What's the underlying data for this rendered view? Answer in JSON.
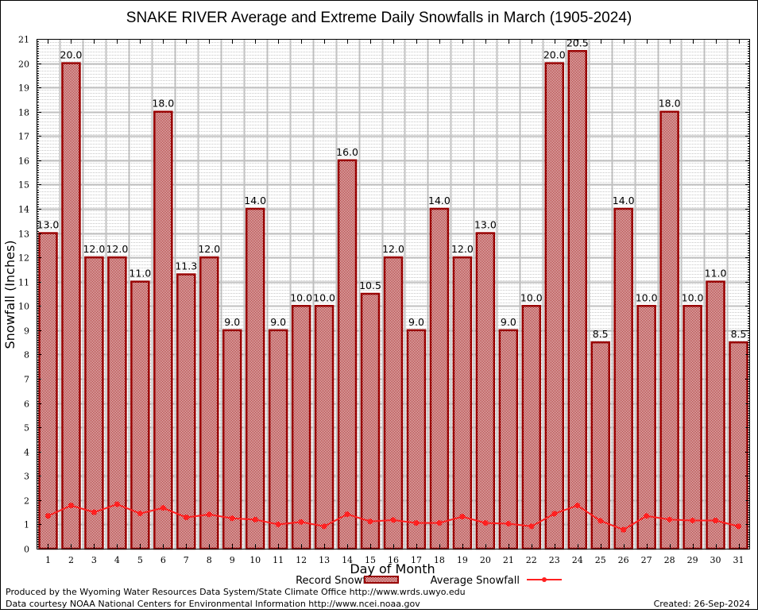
{
  "chart_data": {
    "type": "bar",
    "title": "SNAKE RIVER Average and Extreme Daily Snowfalls in March (1905-2024)",
    "xlabel": "Day of Month",
    "ylabel": "Snowfall (Inches)",
    "ylim": [
      0,
      21
    ],
    "yticks": [
      "0",
      "1",
      "2",
      "3",
      "4",
      "5",
      "6",
      "7",
      "8",
      "9",
      "10",
      "11",
      "12",
      "13",
      "14",
      "15",
      "16",
      "17",
      "18",
      "19",
      "20",
      "21"
    ],
    "categories": [
      "1",
      "2",
      "3",
      "4",
      "5",
      "6",
      "7",
      "8",
      "9",
      "10",
      "11",
      "12",
      "13",
      "14",
      "15",
      "16",
      "17",
      "18",
      "19",
      "20",
      "21",
      "22",
      "23",
      "24",
      "25",
      "26",
      "27",
      "28",
      "29",
      "30",
      "31"
    ],
    "grid": true,
    "legend_position": "bottom-center",
    "series": [
      {
        "name": "Record Snowfall",
        "type": "bar",
        "color": "#990000",
        "values": [
          13.0,
          20.0,
          12.0,
          12.0,
          11.0,
          18.0,
          11.3,
          12.0,
          9.0,
          14.0,
          9.0,
          10.0,
          10.0,
          16.0,
          10.5,
          12.0,
          9.0,
          14.0,
          12.0,
          13.0,
          9.0,
          10.0,
          20.0,
          20.5,
          8.5,
          14.0,
          10.0,
          18.0,
          10.0,
          11.0,
          8.5
        ],
        "labels": [
          "13.0",
          "20.0",
          "12.0",
          "12.0",
          "11.0",
          "18.0",
          "11.3",
          "12.0",
          "9.0",
          "14.0",
          "9.0",
          "10.0",
          "10.0",
          "16.0",
          "10.5",
          "12.0",
          "9.0",
          "14.0",
          "12.0",
          "13.0",
          "9.0",
          "10.0",
          "20.0",
          "20.5",
          "8.5",
          "14.0",
          "10.0",
          "18.0",
          "10.0",
          "11.0",
          "8.5"
        ]
      },
      {
        "name": "Average Snowfall",
        "type": "line",
        "color": "#ff2020",
        "values": [
          1.35,
          1.78,
          1.5,
          1.83,
          1.45,
          1.68,
          1.29,
          1.41,
          1.25,
          1.2,
          1.0,
          1.1,
          0.92,
          1.42,
          1.12,
          1.18,
          1.06,
          1.06,
          1.32,
          1.06,
          1.03,
          0.92,
          1.44,
          1.78,
          1.15,
          0.78,
          1.35,
          1.2,
          1.16,
          1.16,
          0.92
        ]
      }
    ]
  },
  "footer": {
    "line1": "Produced by the Wyoming Water Resources Data System/State Climate Office http://www.wrds.uwyo.edu",
    "line2": "Data courtesy NOAA National Centers for Environmental Information http://www.ncei.noaa.gov",
    "created": "Created: 26-Sep-2024"
  }
}
